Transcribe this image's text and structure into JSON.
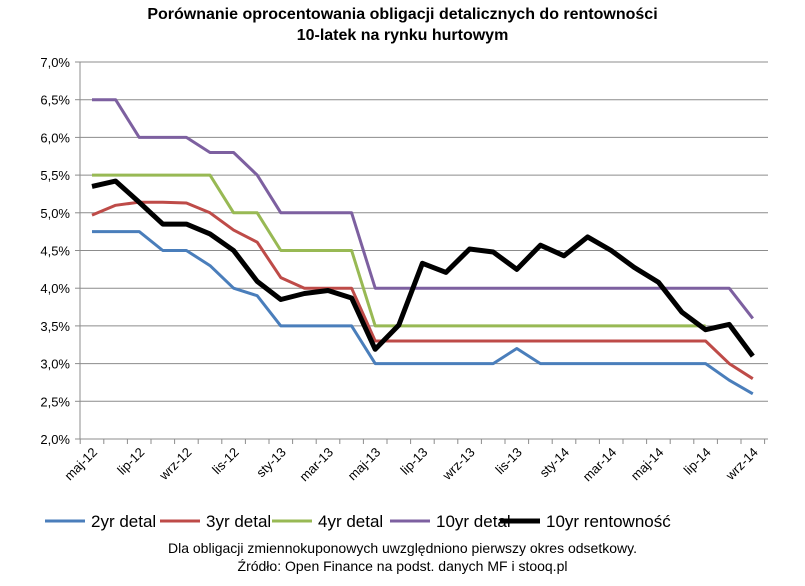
{
  "chart_data": {
    "type": "line",
    "title_line1": "Porównanie oprocentowania obligacji detalicznych do rentowności",
    "title_line2": "10-latek na rynku hurtowym",
    "ylim": [
      2.0,
      7.0
    ],
    "yticks": [
      "2,0%",
      "2,5%",
      "3,0%",
      "3,5%",
      "4,0%",
      "4,5%",
      "5,0%",
      "5,5%",
      "6,0%",
      "6,5%",
      "7,0%"
    ],
    "xtick_labels": [
      "maj-12",
      "lip-12",
      "wrz-12",
      "lis-12",
      "sty-13",
      "mar-13",
      "maj-13",
      "lip-13",
      "wrz-13",
      "lis-13",
      "sty-14",
      "mar-14",
      "maj-14",
      "lip-14",
      "wrz-14"
    ],
    "x": [
      "maj-12",
      "cze-12",
      "lip-12",
      "sie-12",
      "wrz-12",
      "paź-12",
      "lis-12",
      "gru-12",
      "sty-13",
      "lut-13",
      "mar-13",
      "kwi-13",
      "maj-13",
      "cze-13",
      "lip-13",
      "sie-13",
      "wrz-13",
      "paź-13",
      "lis-13",
      "gru-13",
      "sty-14",
      "lut-14",
      "mar-14",
      "kwi-14",
      "maj-14",
      "cze-14",
      "lip-14",
      "sie-14",
      "wrz-14"
    ],
    "grid": true,
    "legend_position": "bottom",
    "series": [
      {
        "name": "2yr detal",
        "color": "#4a7ebb",
        "width": 3,
        "values": [
          4.75,
          4.75,
          4.75,
          4.5,
          4.5,
          4.3,
          4.0,
          3.9,
          3.5,
          3.5,
          3.5,
          3.5,
          3.0,
          3.0,
          3.0,
          3.0,
          3.0,
          3.0,
          3.2,
          3.0,
          3.0,
          3.0,
          3.0,
          3.0,
          3.0,
          3.0,
          3.0,
          2.78,
          2.6
        ]
      },
      {
        "name": "3yr detal",
        "color": "#be4b48",
        "width": 3,
        "values": [
          4.97,
          5.1,
          5.14,
          5.14,
          5.13,
          5.0,
          4.77,
          4.61,
          4.14,
          4.0,
          4.0,
          4.0,
          3.3,
          3.3,
          3.3,
          3.3,
          3.3,
          3.3,
          3.3,
          3.3,
          3.3,
          3.3,
          3.3,
          3.3,
          3.3,
          3.3,
          3.3,
          3.0,
          2.8
        ]
      },
      {
        "name": "4yr detal",
        "color": "#98b954",
        "width": 3,
        "values": [
          5.5,
          5.5,
          5.5,
          5.5,
          5.5,
          5.5,
          5.0,
          5.0,
          4.5,
          4.5,
          4.5,
          4.5,
          3.5,
          3.5,
          3.5,
          3.5,
          3.5,
          3.5,
          3.5,
          3.5,
          3.5,
          3.5,
          3.5,
          3.5,
          3.5,
          3.5,
          3.5,
          null,
          null
        ]
      },
      {
        "name": "10yr detal",
        "color": "#7d60a0",
        "width": 3,
        "values": [
          6.5,
          6.5,
          6.0,
          6.0,
          6.0,
          5.8,
          5.8,
          5.5,
          5.0,
          5.0,
          5.0,
          5.0,
          4.0,
          4.0,
          4.0,
          4.0,
          4.0,
          4.0,
          4.0,
          4.0,
          4.0,
          4.0,
          4.0,
          4.0,
          4.0,
          4.0,
          4.0,
          4.0,
          3.6
        ]
      },
      {
        "name": "10yr rentowność",
        "color": "#000000",
        "width": 5,
        "values": [
          5.35,
          5.42,
          5.14,
          4.85,
          4.85,
          4.72,
          4.5,
          4.09,
          3.85,
          3.93,
          3.97,
          3.87,
          3.19,
          3.51,
          4.33,
          4.21,
          4.52,
          4.48,
          4.25,
          4.57,
          4.43,
          4.68,
          4.5,
          4.27,
          4.08,
          3.68,
          3.45,
          3.52,
          3.1
        ]
      }
    ]
  },
  "footer": {
    "note": "Dla obligacji zmiennokuponowych uwzględniono pierwszy okres odsetkowy.",
    "source": "Źródło: Open Finance na podst. danych MF i stooq.pl"
  }
}
